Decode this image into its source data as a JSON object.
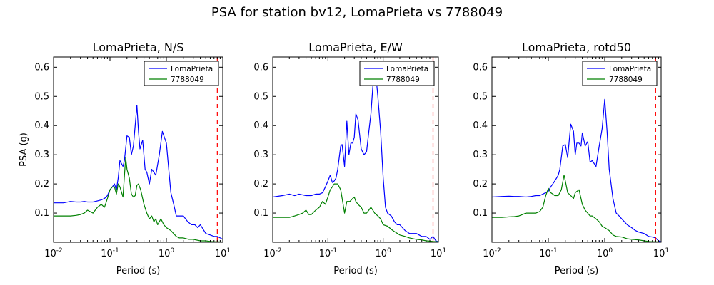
{
  "figure": {
    "suptitle": "PSA for station bv12, LomaPrieta vs 7788049",
    "colors": {
      "series_a": "#0000ff",
      "series_b": "#008000",
      "limit_line": "#ff0000",
      "axes": "#000000"
    }
  },
  "chart_data": [
    {
      "type": "line",
      "title": "LomaPrieta, N/S",
      "xlabel": "Period (s)",
      "ylabel": "PSA (g)",
      "xscale": "log",
      "xlim": [
        0.01,
        10
      ],
      "ylim": [
        0,
        0.635
      ],
      "xtick_labels": [
        "10^-2",
        "10^-1",
        "10^0",
        "10^1"
      ],
      "ytick_labels": [
        "0.1",
        "0.2",
        "0.3",
        "0.4",
        "0.5",
        "0.6"
      ],
      "legend": "upper-right",
      "vline_x": 8.0,
      "series": [
        {
          "name": "LomaPrieta",
          "color": "#0000ff",
          "x": [
            0.01,
            0.015,
            0.02,
            0.025,
            0.03,
            0.035,
            0.04,
            0.05,
            0.06,
            0.07,
            0.08,
            0.09,
            0.1,
            0.11,
            0.12,
            0.13,
            0.14,
            0.15,
            0.17,
            0.18,
            0.2,
            0.22,
            0.24,
            0.26,
            0.28,
            0.3,
            0.32,
            0.34,
            0.38,
            0.42,
            0.45,
            0.5,
            0.55,
            0.6,
            0.65,
            0.75,
            0.85,
            1.0,
            1.1,
            1.2,
            1.35,
            1.5,
            1.7,
            2.0,
            2.4,
            2.8,
            3.2,
            3.6,
            4.0,
            5.0,
            6.0,
            7.0,
            8.0,
            9.0,
            10.0
          ],
          "y": [
            0.135,
            0.135,
            0.14,
            0.138,
            0.138,
            0.14,
            0.138,
            0.138,
            0.142,
            0.145,
            0.15,
            0.16,
            0.18,
            0.19,
            0.2,
            0.18,
            0.22,
            0.28,
            0.26,
            0.28,
            0.365,
            0.36,
            0.3,
            0.33,
            0.4,
            0.47,
            0.38,
            0.32,
            0.35,
            0.25,
            0.24,
            0.2,
            0.25,
            0.24,
            0.23,
            0.3,
            0.38,
            0.34,
            0.25,
            0.17,
            0.13,
            0.09,
            0.09,
            0.09,
            0.07,
            0.06,
            0.06,
            0.05,
            0.06,
            0.03,
            0.025,
            0.02,
            0.02,
            0.015,
            0.01
          ]
        },
        {
          "name": "7788049",
          "color": "#008000",
          "x": [
            0.01,
            0.015,
            0.02,
            0.025,
            0.03,
            0.035,
            0.04,
            0.05,
            0.06,
            0.07,
            0.08,
            0.09,
            0.1,
            0.11,
            0.12,
            0.13,
            0.14,
            0.15,
            0.17,
            0.19,
            0.2,
            0.22,
            0.24,
            0.26,
            0.28,
            0.3,
            0.32,
            0.35,
            0.4,
            0.45,
            0.5,
            0.55,
            0.6,
            0.65,
            0.7,
            0.8,
            0.9,
            1.0,
            1.2,
            1.5,
            1.7,
            2.0,
            2.5,
            3.0,
            4.0,
            5.0,
            6.0,
            7.0,
            8.0,
            10.0
          ],
          "y": [
            0.09,
            0.09,
            0.09,
            0.092,
            0.095,
            0.1,
            0.11,
            0.1,
            0.12,
            0.13,
            0.12,
            0.15,
            0.18,
            0.19,
            0.19,
            0.165,
            0.2,
            0.19,
            0.155,
            0.29,
            0.25,
            0.22,
            0.165,
            0.155,
            0.16,
            0.195,
            0.2,
            0.18,
            0.13,
            0.1,
            0.08,
            0.09,
            0.07,
            0.08,
            0.06,
            0.08,
            0.06,
            0.05,
            0.04,
            0.02,
            0.015,
            0.015,
            0.01,
            0.01,
            0.005,
            0.005,
            0.003,
            0.002,
            0.002,
            0.001
          ]
        }
      ]
    },
    {
      "type": "line",
      "title": "LomaPrieta, E/W",
      "xlabel": "Period (s)",
      "ylabel": "",
      "xscale": "log",
      "xlim": [
        0.01,
        10
      ],
      "ylim": [
        0,
        0.635
      ],
      "xtick_labels": [
        "10^-2",
        "10^-1",
        "10^0",
        "10^1"
      ],
      "ytick_labels": [
        "0.1",
        "0.2",
        "0.3",
        "0.4",
        "0.5",
        "0.6"
      ],
      "legend": "upper-right",
      "vline_x": 8.0,
      "series": [
        {
          "name": "LomaPrieta",
          "color": "#0000ff",
          "x": [
            0.01,
            0.015,
            0.02,
            0.025,
            0.03,
            0.04,
            0.05,
            0.06,
            0.07,
            0.08,
            0.09,
            0.1,
            0.11,
            0.12,
            0.13,
            0.14,
            0.15,
            0.17,
            0.18,
            0.2,
            0.22,
            0.24,
            0.26,
            0.28,
            0.3,
            0.32,
            0.35,
            0.4,
            0.45,
            0.5,
            0.55,
            0.6,
            0.7,
            0.8,
            0.9,
            1.0,
            1.1,
            1.2,
            1.4,
            1.6,
            1.8,
            2.0,
            2.5,
            3.0,
            3.5,
            4.0,
            5.0,
            6.0,
            7.0,
            8.0,
            9.0,
            10.0
          ],
          "y": [
            0.155,
            0.16,
            0.165,
            0.16,
            0.165,
            0.16,
            0.16,
            0.165,
            0.165,
            0.17,
            0.19,
            0.21,
            0.23,
            0.205,
            0.21,
            0.22,
            0.25,
            0.33,
            0.335,
            0.26,
            0.415,
            0.3,
            0.34,
            0.34,
            0.36,
            0.44,
            0.42,
            0.32,
            0.3,
            0.31,
            0.38,
            0.44,
            0.62,
            0.5,
            0.38,
            0.22,
            0.12,
            0.1,
            0.09,
            0.07,
            0.06,
            0.06,
            0.04,
            0.03,
            0.03,
            0.03,
            0.02,
            0.02,
            0.01,
            0.02,
            0.005,
            0.002
          ]
        },
        {
          "name": "7788049",
          "color": "#008000",
          "x": [
            0.01,
            0.015,
            0.02,
            0.025,
            0.03,
            0.035,
            0.04,
            0.045,
            0.05,
            0.06,
            0.07,
            0.08,
            0.09,
            0.1,
            0.11,
            0.12,
            0.13,
            0.14,
            0.15,
            0.17,
            0.2,
            0.22,
            0.25,
            0.28,
            0.3,
            0.32,
            0.35,
            0.4,
            0.45,
            0.5,
            0.55,
            0.6,
            0.65,
            0.7,
            0.8,
            0.9,
            1.0,
            1.2,
            1.5,
            2.0,
            2.5,
            3.0,
            4.0,
            5.0,
            6.0,
            7.0,
            8.0,
            10.0
          ],
          "y": [
            0.085,
            0.085,
            0.085,
            0.09,
            0.095,
            0.1,
            0.11,
            0.095,
            0.095,
            0.11,
            0.12,
            0.14,
            0.13,
            0.155,
            0.18,
            0.19,
            0.2,
            0.2,
            0.2,
            0.18,
            0.1,
            0.14,
            0.14,
            0.15,
            0.155,
            0.14,
            0.13,
            0.12,
            0.1,
            0.1,
            0.11,
            0.12,
            0.11,
            0.1,
            0.09,
            0.08,
            0.06,
            0.055,
            0.04,
            0.025,
            0.02,
            0.015,
            0.01,
            0.008,
            0.005,
            0.004,
            0.003,
            0.002
          ]
        }
      ]
    },
    {
      "type": "line",
      "title": "LomaPrieta, rotd50",
      "xlabel": "Period (s)",
      "ylabel": "",
      "xscale": "log",
      "xlim": [
        0.01,
        10
      ],
      "ylim": [
        0,
        0.635
      ],
      "xtick_labels": [
        "10^-2",
        "10^-1",
        "10^0",
        "10^1"
      ],
      "ytick_labels": [
        "0.1",
        "0.2",
        "0.3",
        "0.4",
        "0.5",
        "0.6"
      ],
      "legend": "upper-right",
      "vline_x": 8.0,
      "series": [
        {
          "name": "LomaPrieta",
          "color": "#0000ff",
          "x": [
            0.01,
            0.015,
            0.02,
            0.025,
            0.03,
            0.04,
            0.05,
            0.06,
            0.07,
            0.08,
            0.09,
            0.1,
            0.11,
            0.12,
            0.13,
            0.14,
            0.15,
            0.16,
            0.18,
            0.2,
            0.22,
            0.25,
            0.28,
            0.3,
            0.32,
            0.35,
            0.38,
            0.4,
            0.45,
            0.5,
            0.55,
            0.6,
            0.7,
            0.8,
            0.9,
            1.0,
            1.1,
            1.2,
            1.4,
            1.6,
            1.8,
            2.0,
            2.5,
            3.0,
            3.5,
            4.0,
            5.0,
            6.0,
            7.0,
            8.0,
            9.0,
            10.0
          ],
          "y": [
            0.155,
            0.157,
            0.158,
            0.157,
            0.157,
            0.155,
            0.157,
            0.16,
            0.16,
            0.165,
            0.17,
            0.175,
            0.19,
            0.2,
            0.21,
            0.22,
            0.23,
            0.25,
            0.33,
            0.335,
            0.29,
            0.405,
            0.38,
            0.3,
            0.34,
            0.34,
            0.33,
            0.375,
            0.33,
            0.345,
            0.275,
            0.28,
            0.26,
            0.33,
            0.39,
            0.49,
            0.38,
            0.25,
            0.15,
            0.1,
            0.09,
            0.08,
            0.06,
            0.05,
            0.04,
            0.035,
            0.03,
            0.02,
            0.018,
            0.015,
            0.005,
            0.002
          ]
        },
        {
          "name": "7788049",
          "color": "#008000",
          "x": [
            0.01,
            0.015,
            0.02,
            0.025,
            0.03,
            0.035,
            0.04,
            0.05,
            0.06,
            0.07,
            0.08,
            0.09,
            0.1,
            0.11,
            0.12,
            0.13,
            0.14,
            0.15,
            0.17,
            0.19,
            0.2,
            0.22,
            0.25,
            0.28,
            0.3,
            0.35,
            0.4,
            0.45,
            0.5,
            0.55,
            0.6,
            0.7,
            0.8,
            0.9,
            1.0,
            1.2,
            1.4,
            1.6,
            2.0,
            2.5,
            3.0,
            4.0,
            5.0,
            6.0,
            7.0,
            8.0,
            10.0
          ],
          "y": [
            0.085,
            0.085,
            0.087,
            0.088,
            0.09,
            0.095,
            0.1,
            0.1,
            0.1,
            0.105,
            0.12,
            0.16,
            0.185,
            0.17,
            0.165,
            0.16,
            0.16,
            0.16,
            0.18,
            0.23,
            0.21,
            0.17,
            0.16,
            0.15,
            0.17,
            0.18,
            0.13,
            0.11,
            0.1,
            0.09,
            0.09,
            0.08,
            0.07,
            0.055,
            0.05,
            0.04,
            0.025,
            0.02,
            0.018,
            0.012,
            0.01,
            0.008,
            0.005,
            0.003,
            0.002,
            0.002,
            0.001
          ]
        }
      ]
    }
  ]
}
